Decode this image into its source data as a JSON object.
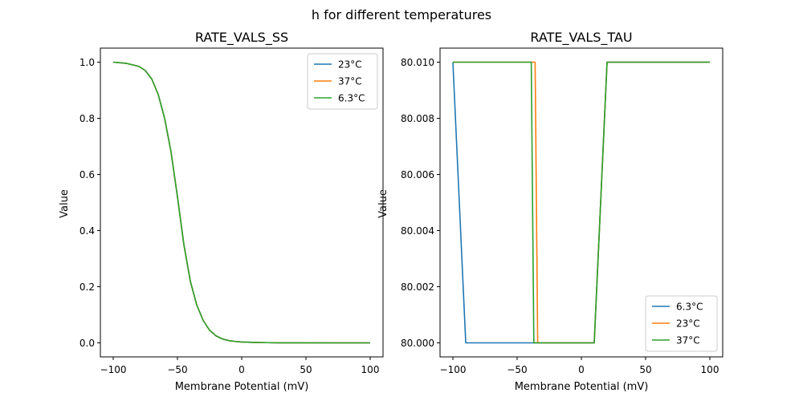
{
  "figure": {
    "suptitle": "h for different temperatures"
  },
  "chart_data": [
    {
      "type": "line",
      "title": "RATE_VALS_SS",
      "xlabel": "Membrane Potential (mV)",
      "ylabel": "Value",
      "xlim": [
        -110,
        110
      ],
      "ylim": [
        -0.05,
        1.05
      ],
      "xticks": [
        -100,
        -50,
        0,
        50,
        100
      ],
      "yticks": [
        0.0,
        0.2,
        0.4,
        0.6,
        0.8,
        1.0
      ],
      "ytick_labels": [
        "0.0",
        "0.2",
        "0.4",
        "0.6",
        "0.8",
        "1.0"
      ],
      "legend": "top-right",
      "grid": false,
      "series": [
        {
          "name": "23°C",
          "color": "#1f77b4",
          "x": [
            -100,
            -90,
            -80,
            -75,
            -70,
            -65,
            -60,
            -55,
            -50,
            -45,
            -40,
            -35,
            -30,
            -25,
            -20,
            -15,
            -10,
            -5,
            0,
            10,
            20,
            30,
            50,
            75,
            100
          ],
          "y": [
            1.0,
            0.996,
            0.985,
            0.97,
            0.94,
            0.885,
            0.8,
            0.68,
            0.52,
            0.35,
            0.22,
            0.135,
            0.08,
            0.045,
            0.025,
            0.014,
            0.008,
            0.005,
            0.003,
            0.0015,
            0.0007,
            0.0003,
            0.0001,
            0.0,
            0.0
          ]
        },
        {
          "name": "37°C",
          "color": "#ff7f0e",
          "x": [
            -100,
            -90,
            -80,
            -75,
            -70,
            -65,
            -60,
            -55,
            -50,
            -45,
            -40,
            -35,
            -30,
            -25,
            -20,
            -15,
            -10,
            -5,
            0,
            10,
            20,
            30,
            50,
            75,
            100
          ],
          "y": [
            1.0,
            0.996,
            0.985,
            0.97,
            0.94,
            0.885,
            0.8,
            0.68,
            0.52,
            0.35,
            0.22,
            0.135,
            0.08,
            0.045,
            0.025,
            0.014,
            0.008,
            0.005,
            0.003,
            0.0015,
            0.0007,
            0.0003,
            0.0001,
            0.0,
            0.0
          ]
        },
        {
          "name": "6.3°C",
          "color": "#2ca02c",
          "x": [
            -100,
            -90,
            -80,
            -75,
            -70,
            -65,
            -60,
            -55,
            -50,
            -45,
            -40,
            -35,
            -30,
            -25,
            -20,
            -15,
            -10,
            -5,
            0,
            10,
            20,
            30,
            50,
            75,
            100
          ],
          "y": [
            1.0,
            0.996,
            0.985,
            0.97,
            0.94,
            0.885,
            0.8,
            0.68,
            0.52,
            0.35,
            0.22,
            0.135,
            0.08,
            0.045,
            0.025,
            0.014,
            0.008,
            0.005,
            0.003,
            0.0015,
            0.0007,
            0.0003,
            0.0001,
            0.0,
            0.0
          ]
        }
      ]
    },
    {
      "type": "line",
      "title": "RATE_VALS_TAU",
      "xlabel": "Membrane Potential (mV)",
      "ylabel": "Value",
      "xlim": [
        -110,
        110
      ],
      "ylim": [
        79.9995,
        80.0105
      ],
      "xticks": [
        -100,
        -50,
        0,
        50,
        100
      ],
      "yticks": [
        80.0,
        80.002,
        80.004,
        80.006,
        80.008,
        80.01
      ],
      "ytick_labels": [
        "80.000",
        "80.002",
        "80.004",
        "80.006",
        "80.008",
        "80.010"
      ],
      "legend": "bottom-right",
      "grid": false,
      "series": [
        {
          "name": "6.3°C",
          "color": "#1f77b4",
          "x": [
            -100,
            -90,
            10,
            20,
            100
          ],
          "y": [
            80.01,
            80.0,
            80.0,
            80.01,
            80.01
          ]
        },
        {
          "name": "23°C",
          "color": "#ff7f0e",
          "x": [
            -100,
            -36,
            -34,
            10,
            20,
            100
          ],
          "y": [
            80.01,
            80.01,
            80.0,
            80.0,
            80.01,
            80.01
          ]
        },
        {
          "name": "37°C",
          "color": "#2ca02c",
          "x": [
            -100,
            -39,
            -37,
            10,
            20,
            100
          ],
          "y": [
            80.01,
            80.01,
            80.0,
            80.0,
            80.01,
            80.01
          ]
        }
      ]
    }
  ]
}
